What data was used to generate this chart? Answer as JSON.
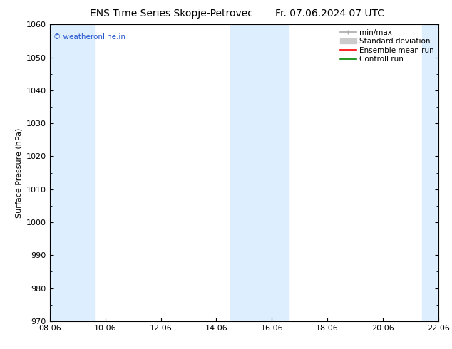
{
  "title_left": "ENS Time Series Skopje-Petrovec",
  "title_right": "Fr. 07.06.2024 07 UTC",
  "ylabel": "Surface Pressure (hPa)",
  "ylim": [
    970,
    1060
  ],
  "yticks": [
    970,
    980,
    990,
    1000,
    1010,
    1020,
    1030,
    1040,
    1050,
    1060
  ],
  "xlim_start": 0,
  "xlim_end": 14,
  "xtick_labels": [
    "08.06",
    "10.06",
    "12.06",
    "14.06",
    "16.06",
    "18.06",
    "20.06",
    "22.06"
  ],
  "xtick_positions": [
    0,
    2,
    4,
    6,
    8,
    10,
    12,
    14
  ],
  "shaded_bands": [
    {
      "x_start": 0.0,
      "x_end": 1.6,
      "color": "#ddeeff"
    },
    {
      "x_start": 6.5,
      "x_end": 8.6,
      "color": "#ddeeff"
    },
    {
      "x_start": 13.4,
      "x_end": 14.0,
      "color": "#ddeeff"
    }
  ],
  "background_color": "#ffffff",
  "plot_bg_color": "#ffffff",
  "legend_items": [
    {
      "label": "min/max",
      "color": "#aaaaaa",
      "lw": 1.2,
      "type": "line"
    },
    {
      "label": "Standard deviation",
      "color": "#cccccc",
      "lw": 6,
      "type": "patch"
    },
    {
      "label": "Ensemble mean run",
      "color": "#ff0000",
      "lw": 1.2,
      "type": "line"
    },
    {
      "label": "Controll run",
      "color": "#008800",
      "lw": 1.2,
      "type": "line"
    }
  ],
  "watermark": "© weatheronline.in",
  "watermark_color": "#2255cc",
  "title_fontsize": 10,
  "axis_label_fontsize": 8,
  "tick_fontsize": 8,
  "legend_fontsize": 7.5
}
